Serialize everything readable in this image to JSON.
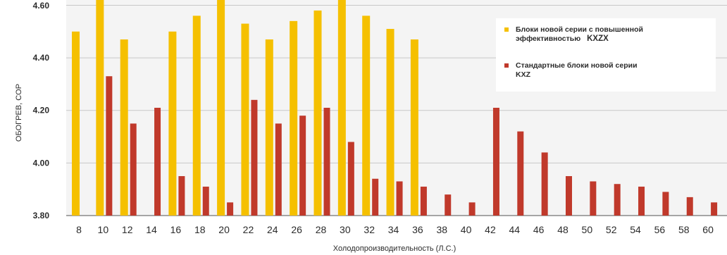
{
  "chart_data": {
    "type": "bar",
    "xlabel": "Холодопроизводительность (Л.С.)",
    "ylabel": "ОБОГРЕВ, COP",
    "ylim": [
      3.8,
      4.62
    ],
    "yticks": [
      "3.80",
      "4.00",
      "4.20",
      "4.40",
      "4.60"
    ],
    "categories": [
      "8",
      "10",
      "12",
      "14",
      "16",
      "18",
      "20",
      "22",
      "24",
      "26",
      "28",
      "30",
      "32",
      "34",
      "36",
      "38",
      "40",
      "42",
      "44",
      "46",
      "48",
      "50",
      "52",
      "54",
      "56",
      "58",
      "60"
    ],
    "series": [
      {
        "name_line1": "Блоки новой серии с повышенной",
        "name_line2": "эффективностью",
        "name_model": "KXZX",
        "color": "#f5c000",
        "values": [
          4.5,
          4.62,
          4.47,
          null,
          4.5,
          4.56,
          4.62,
          4.53,
          4.47,
          4.54,
          4.58,
          4.62,
          4.56,
          4.51,
          4.47,
          null,
          null,
          null,
          null,
          null,
          null,
          null,
          null,
          null,
          null,
          null,
          null
        ]
      },
      {
        "name_line1": "Стандартные блоки новой серии",
        "name_model": "KXZ",
        "color": "#c0392b",
        "values": [
          null,
          4.33,
          4.15,
          4.21,
          3.95,
          3.91,
          3.85,
          4.24,
          4.15,
          4.18,
          4.21,
          4.08,
          3.94,
          3.93,
          3.91,
          3.88,
          3.85,
          4.21,
          4.12,
          4.04,
          3.95,
          3.93,
          3.92,
          3.91,
          3.89,
          3.87,
          3.85
        ]
      }
    ],
    "grid": true,
    "legend": "top-right"
  }
}
